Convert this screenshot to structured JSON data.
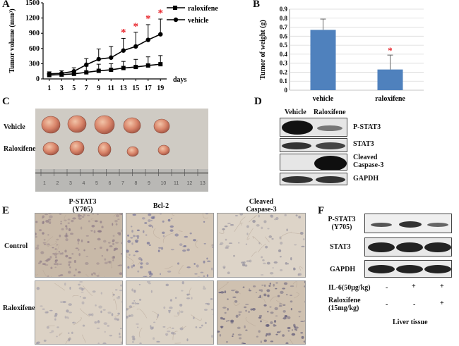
{
  "panels": {
    "A": "A",
    "B": "B",
    "C": "C",
    "D": "D",
    "E": "E",
    "F": "F"
  },
  "chart_data": [
    {
      "type": "line",
      "y_axis_label": "Tumor volume (mm³)",
      "x_axis_label": "days",
      "x": [
        1,
        3,
        5,
        7,
        9,
        11,
        13,
        15,
        17,
        19
      ],
      "ylim": [
        0,
        1500
      ],
      "yticks": [
        0,
        300,
        600,
        900,
        1200,
        1500
      ],
      "series": [
        {
          "name": "raloxifene",
          "marker": "square",
          "values": [
            75,
            85,
            100,
            130,
            160,
            180,
            215,
            235,
            265,
            290
          ],
          "errors": [
            40,
            40,
            60,
            120,
            130,
            120,
            130,
            150,
            170,
            170
          ]
        },
        {
          "name": "vehicle",
          "marker": "circle",
          "values": [
            100,
            110,
            150,
            280,
            390,
            420,
            560,
            640,
            770,
            880
          ],
          "errors": [
            40,
            50,
            70,
            120,
            200,
            220,
            240,
            280,
            300,
            300
          ]
        }
      ],
      "significance_marks": [
        {
          "x": 13,
          "mark": "*"
        },
        {
          "x": 15,
          "mark": "*"
        },
        {
          "x": 17,
          "mark": "*"
        },
        {
          "x": 19,
          "mark": "*"
        }
      ]
    },
    {
      "type": "bar",
      "y_axis_label": "Tumor of weight (g)",
      "categories": [
        "vehicle",
        "raloxifene"
      ],
      "values": [
        0.67,
        0.23
      ],
      "errors": [
        0.12,
        0.16
      ],
      "ylim": [
        0,
        0.9
      ],
      "yticks": [
        "0",
        "0.1",
        "0.2",
        "0.3",
        "0.4",
        "0.5",
        "0.6",
        "0.7",
        "0.8",
        "0.9"
      ],
      "bar_color": "#4f81bd",
      "significance_marks": [
        {
          "category": "raloxifene",
          "mark": "*"
        }
      ]
    }
  ],
  "panelC": {
    "row1": "Vehicle",
    "row2": "Raloxifene",
    "ruler_numbers": [
      "1",
      "2",
      "3",
      "4",
      "5",
      "6",
      "7",
      "8",
      "9",
      "10",
      "11",
      "12",
      "13"
    ]
  },
  "panelD": {
    "col1": "Vehicle",
    "col2": "Raloxifene",
    "rows": [
      "P-STAT3",
      "STAT3",
      "Cleaved\nCaspase-3",
      "GAPDH"
    ]
  },
  "panelE": {
    "cols": [
      "P-STAT3\n(Y705)",
      "Bcl-2",
      "Cleaved\nCaspase-3"
    ],
    "rows": [
      "Control",
      "Raloxifene"
    ]
  },
  "panelF": {
    "rows": [
      "P-STAT3\n(Y705)",
      "STAT3",
      "GAPDH"
    ],
    "il6_label": "IL-6(50μg/kg)",
    "il6": [
      "-",
      "+",
      "+"
    ],
    "ral_label": "Raloxifene\n(15mg/kg)",
    "ral": [
      "-",
      "-",
      "+"
    ],
    "tissue": "Liver tissue"
  },
  "colors": {
    "accent_red": "#e8232a",
    "bar_blue": "#4f81bd"
  }
}
